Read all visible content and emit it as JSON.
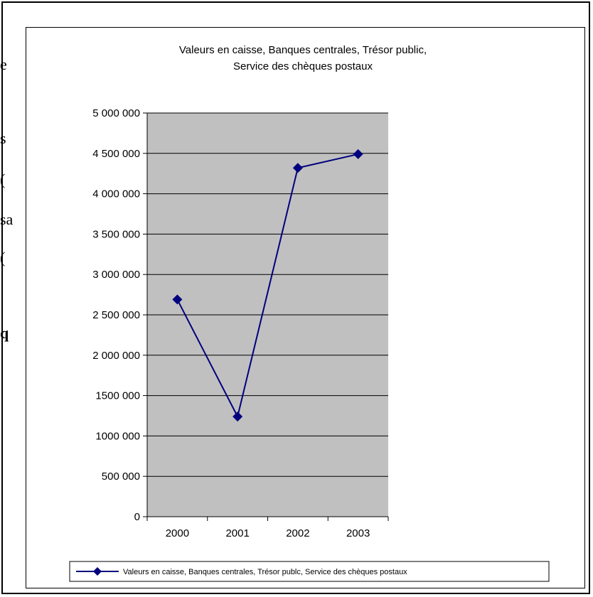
{
  "background_fragments": [
    "e",
    "s",
    "(",
    "sa",
    "(",
    "q"
  ],
  "chart_data": {
    "type": "line",
    "title": [
      "Valeurs en caisse, Banques centrales, Trésor public,",
      "Service des chèques postaux"
    ],
    "categories": [
      "2000",
      "2001",
      "2002",
      "2003"
    ],
    "series": [
      {
        "name": "Valeurs en caisse, Banques centrales, Trésor publc, Service des chèques postaux",
        "values": [
          2690000,
          1240000,
          4320000,
          4490000
        ],
        "color": "#00007f"
      }
    ],
    "ylim": [
      0,
      5000000
    ],
    "yticks": [
      0,
      500000,
      1000000,
      1500000,
      2000000,
      2500000,
      3000000,
      3500000,
      4000000,
      4500000,
      5000000
    ],
    "ytick_labels": [
      "0",
      "500 000",
      "1000 000",
      "1500 000",
      "2 000 000",
      "2 500 000",
      "3 000 000",
      "3 500 000",
      "4 000 000",
      "4 500 000",
      "5 000 000"
    ],
    "plot_area_color": "#c0c0c0",
    "grid": true,
    "legend_position": "bottom",
    "marker": "diamond"
  }
}
